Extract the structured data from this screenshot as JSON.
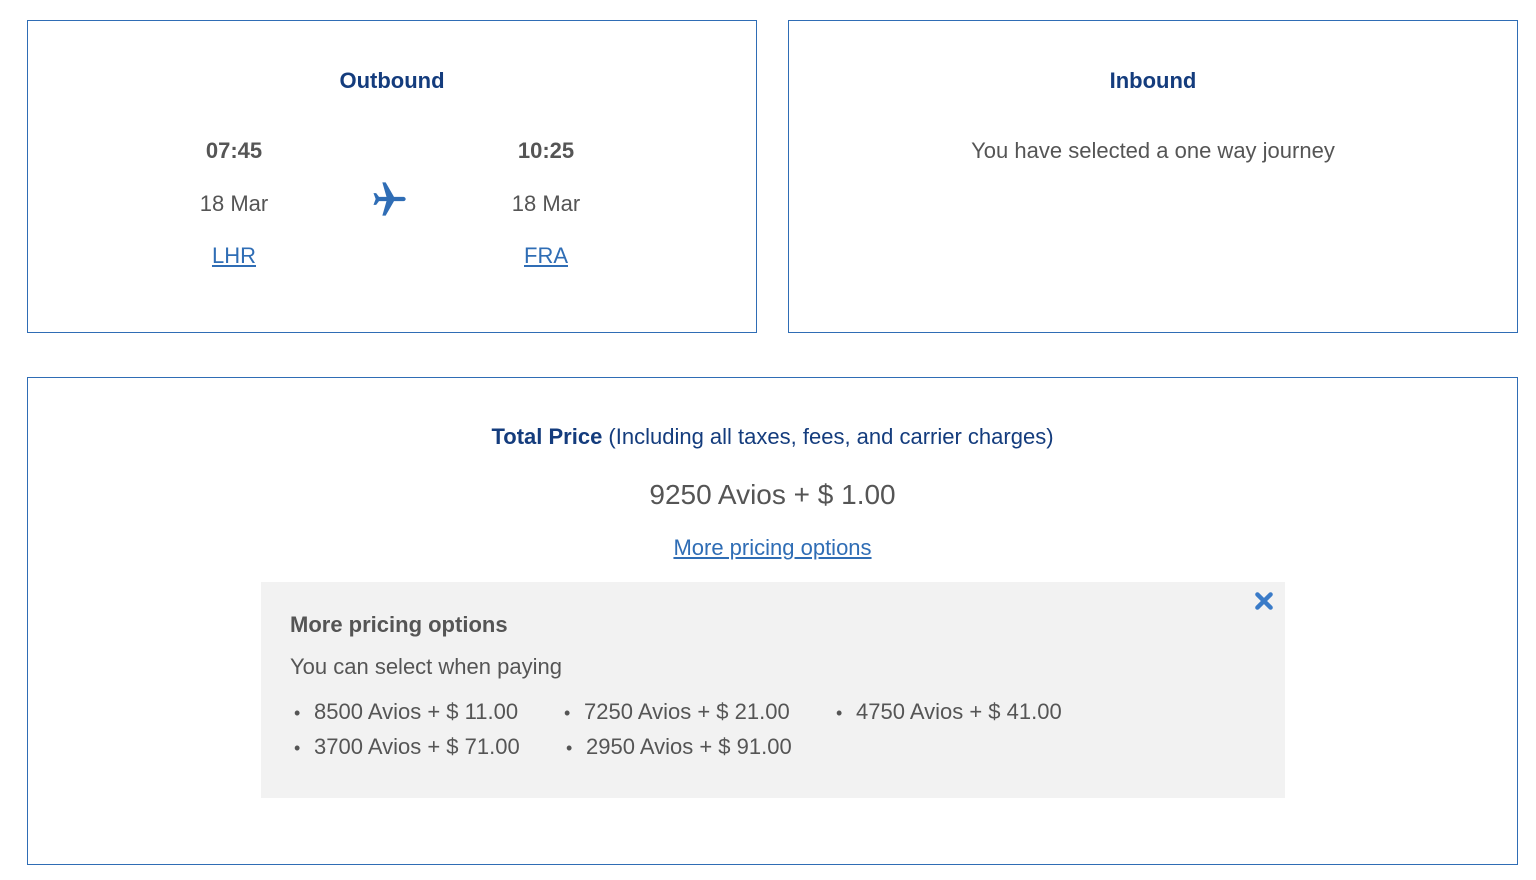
{
  "outbound": {
    "title": "Outbound",
    "departure": {
      "time": "07:45",
      "date": "18 Mar",
      "airport": "LHR"
    },
    "arrival": {
      "time": "10:25",
      "date": "18 Mar",
      "airport": "FRA"
    },
    "icon": "airplane-icon"
  },
  "inbound": {
    "title": "Inbound",
    "message": "You have selected a one way journey"
  },
  "total": {
    "label": "Total Price",
    "sublabel": " (Including all taxes, fees, and carrier charges)",
    "price": "9250 Avios + $ 1.00",
    "more_link": "More pricing options"
  },
  "pricing_panel": {
    "heading": "More pricing options",
    "subheading": "You can select when paying",
    "options": [
      "8500 Avios + $ 11.00",
      "7250 Avios + $ 21.00",
      "4750 Avios + $ 41.00",
      "3700 Avios + $ 71.00",
      "2950 Avios + $ 91.00"
    ],
    "close_icon": "close-icon"
  },
  "colors": {
    "accent": "#2f6db5",
    "heading": "#143c7d",
    "text": "#555555",
    "panel_bg": "#f2f2f2"
  }
}
